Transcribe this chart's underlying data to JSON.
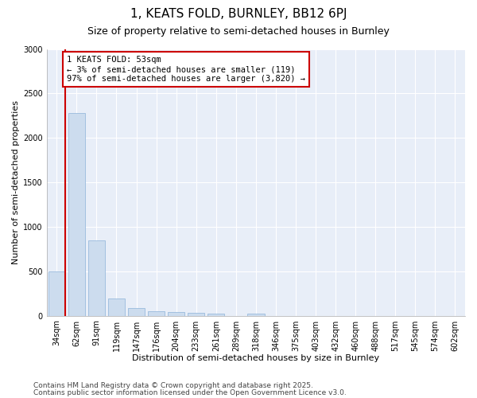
{
  "title_line1": "1, KEATS FOLD, BURNLEY, BB12 6PJ",
  "title_line2": "Size of property relative to semi-detached houses in Burnley",
  "xlabel": "Distribution of semi-detached houses by size in Burnley",
  "ylabel": "Number of semi-detached properties",
  "categories": [
    "34sqm",
    "62sqm",
    "91sqm",
    "119sqm",
    "147sqm",
    "176sqm",
    "204sqm",
    "233sqm",
    "261sqm",
    "289sqm",
    "318sqm",
    "346sqm",
    "375sqm",
    "403sqm",
    "432sqm",
    "460sqm",
    "488sqm",
    "517sqm",
    "545sqm",
    "574sqm",
    "602sqm"
  ],
  "values": [
    500,
    2280,
    850,
    195,
    90,
    50,
    40,
    30,
    20,
    0,
    20,
    0,
    0,
    0,
    0,
    0,
    0,
    0,
    0,
    0,
    0
  ],
  "bar_color": "#ccdcee",
  "bar_edge_color": "#99bbdd",
  "marker_line_color": "#cc0000",
  "annotation_text": "1 KEATS FOLD: 53sqm\n← 3% of semi-detached houses are smaller (119)\n97% of semi-detached houses are larger (3,820) →",
  "annotation_box_color": "#ffffff",
  "annotation_box_edge_color": "#cc0000",
  "ylim": [
    0,
    3000
  ],
  "yticks": [
    0,
    500,
    1000,
    1500,
    2000,
    2500,
    3000
  ],
  "background_color": "#ffffff",
  "plot_bg_color": "#e8eef8",
  "footnote1": "Contains HM Land Registry data © Crown copyright and database right 2025.",
  "footnote2": "Contains public sector information licensed under the Open Government Licence v3.0.",
  "grid_color": "#ffffff",
  "title_fontsize": 11,
  "subtitle_fontsize": 9,
  "tick_fontsize": 7,
  "label_fontsize": 8,
  "footnote_fontsize": 6.5
}
